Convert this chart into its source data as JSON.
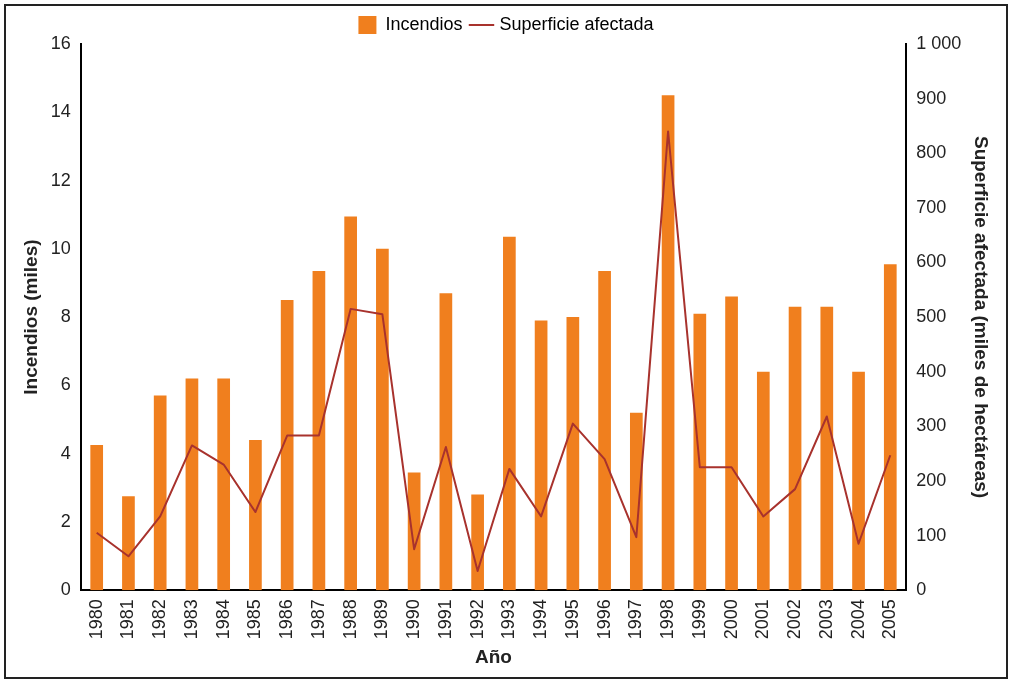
{
  "chart_data": {
    "type": "bar",
    "xlabel": "Año",
    "ylabel": "Incendios (miles)",
    "y2label": "Superficie afectada (miles de hectáreas)",
    "categories": [
      "1980",
      "1981",
      "1982",
      "1983",
      "1984",
      "1985",
      "1986",
      "1987",
      "1988",
      "1989",
      "1990",
      "1991",
      "1992",
      "1993",
      "1994",
      "1995",
      "1996",
      "1997",
      "1998",
      "1999",
      "2000",
      "2001",
      "2002",
      "2003",
      "2004",
      "2005"
    ],
    "series": [
      {
        "name": "Incendios",
        "color": "#f07f1e",
        "values": [
          4.25,
          2.75,
          5.7,
          6.2,
          6.2,
          4.4,
          8.5,
          9.35,
          10.95,
          10.0,
          3.45,
          8.7,
          2.8,
          10.35,
          7.9,
          8.0,
          9.35,
          5.2,
          14.5,
          8.1,
          8.6,
          6.4,
          8.3,
          8.3,
          6.4,
          9.55
        ]
      },
      {
        "name": "Superficie afectada",
        "type": "line",
        "axis": "y2",
        "color": "#a8322d",
        "values": [
          105,
          62,
          135,
          265,
          230,
          143,
          283,
          283,
          515,
          505,
          75,
          262,
          35,
          222,
          135,
          305,
          240,
          97,
          840,
          225,
          225,
          135,
          185,
          318,
          85,
          247
        ]
      }
    ],
    "ylim": [
      0,
      16
    ],
    "yticks": [
      0,
      2,
      4,
      6,
      8,
      10,
      12,
      14,
      16
    ],
    "y2lim": [
      0,
      1000
    ],
    "y2ticks": [
      0,
      100,
      200,
      300,
      400,
      500,
      600,
      700,
      800,
      900,
      {
        "value": 1000,
        "label": "1 000"
      }
    ],
    "legend": "top",
    "grid": false,
    "marker": "none",
    "line_style": "solid"
  }
}
